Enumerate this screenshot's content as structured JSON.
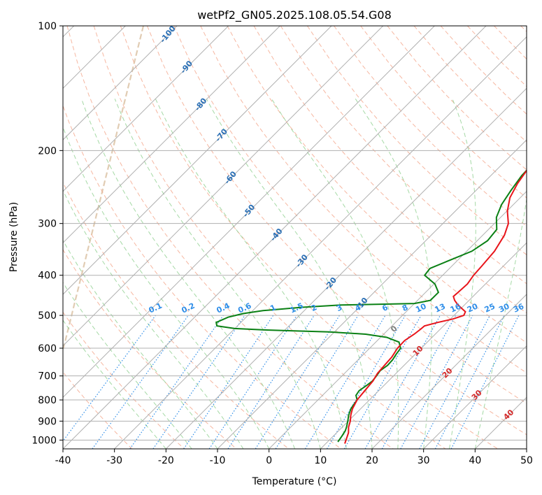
{
  "chart_data": {
    "type": "skew-t",
    "title": "wetPf2_GN05.2025.108.05.54.G08",
    "xlabel": "Temperature (°C)",
    "ylabel": "Pressure (hPa)",
    "xlim": [
      -40,
      50
    ],
    "ylim": [
      1050,
      100
    ],
    "x_ticks": [
      -40,
      -30,
      -20,
      -10,
      0,
      10,
      20,
      30,
      40,
      50
    ],
    "y_ticks": [
      100,
      200,
      300,
      400,
      500,
      600,
      700,
      800,
      900,
      1000
    ],
    "grid": true,
    "colors": {
      "temperature": "#e8141a",
      "dewpoint": "#0a8014",
      "isotherm": "#b0b0b0",
      "dry_adiabat": "#f4a58a",
      "moist_adiabat": "#8fcf8f",
      "mixing_ratio": "#2f8ee8",
      "isotherm_label": "#2a6fb5",
      "dry_label": "#d42a2a",
      "wbz_label": "#808080",
      "grid": "#b0b0b0",
      "tan_curve": "#d9bfa0"
    },
    "temperature_profile": {
      "name": "Temperature",
      "pressure": [
        1020,
        990,
        960,
        930,
        900,
        870,
        840,
        800,
        760,
        720,
        690,
        660,
        630,
        600,
        575,
        555,
        540,
        530,
        520,
        510,
        500,
        490,
        480,
        470,
        460,
        450,
        440,
        420,
        400,
        380,
        350,
        320,
        300,
        280,
        260,
        240,
        220,
        205,
        190,
        175,
        160,
        150,
        140,
        130,
        120,
        110,
        100
      ],
      "temperature": [
        13.7,
        13.0,
        12.3,
        11.2,
        10.4,
        9.3,
        8.4,
        7.6,
        7.3,
        7.0,
        6.4,
        6.2,
        6.0,
        5.4,
        5.3,
        5.9,
        6.2,
        6.3,
        8.2,
        10.5,
        11.9,
        11.5,
        10.0,
        8.5,
        7.2,
        6.2,
        6.3,
        6.5,
        6.0,
        5.8,
        5.4,
        4.2,
        2.7,
        0.1,
        -2.0,
        -3.3,
        -4.2,
        -4.2,
        -3.2,
        -2.0,
        -0.3,
        1.9,
        5.0,
        9.2,
        10.8,
        12.2,
        14.4
      ]
    },
    "dewpoint_profile": {
      "name": "Dewpoint",
      "pressure": [
        1010,
        980,
        950,
        930,
        900,
        870,
        840,
        800,
        780,
        760,
        740,
        720,
        700,
        680,
        660,
        640,
        620,
        600,
        580,
        565,
        555,
        548,
        545,
        542,
        538,
        530,
        520,
        505,
        495,
        487,
        478,
        472,
        468,
        460,
        440,
        420,
        400,
        385,
        370,
        350,
        330,
        310,
        290,
        270,
        250,
        230,
        210,
        200,
        190,
        180,
        170,
        160,
        150,
        140,
        130,
        120,
        110,
        100
      ],
      "temperature": [
        12.0,
        11.7,
        11.3,
        10.8,
        9.9,
        8.9,
        8.1,
        7.6,
        6.5,
        6.2,
        6.6,
        6.9,
        6.7,
        6.4,
        6.8,
        6.7,
        6.3,
        6.0,
        4.5,
        1.2,
        -3.5,
        -11.0,
        -18.0,
        -24.0,
        -30.0,
        -34.0,
        -34.8,
        -33.5,
        -31.3,
        -28.0,
        -21.0,
        -14.0,
        0.0,
        2.5,
        2.5,
        0.2,
        -3.5,
        -3.8,
        -1.8,
        1.0,
        2.0,
        1.6,
        -0.8,
        -2.3,
        -3.2,
        -4.0,
        -4.2,
        -4.2,
        -3.9,
        -4.0,
        -5.0,
        -6.1,
        -6.5,
        -6.4,
        -4.9,
        -3.0,
        -1.5,
        0.0
      ]
    },
    "isotherm_labels": [
      "-100",
      "-90",
      "-80",
      "-70",
      "-60",
      "-50",
      "-40",
      "-30",
      "-20",
      "-10"
    ],
    "mixing_ratio_labels": [
      "0.1",
      "0.2",
      "0.4",
      "0.6",
      "1",
      "1.5",
      "2",
      "3",
      "4",
      "6",
      "8",
      "10",
      "13",
      "16",
      "20",
      "25",
      "30",
      "36"
    ],
    "dry_adiabat_labels": [
      "10",
      "20",
      "30",
      "40"
    ],
    "wet_bulb_zero_label": "0"
  }
}
